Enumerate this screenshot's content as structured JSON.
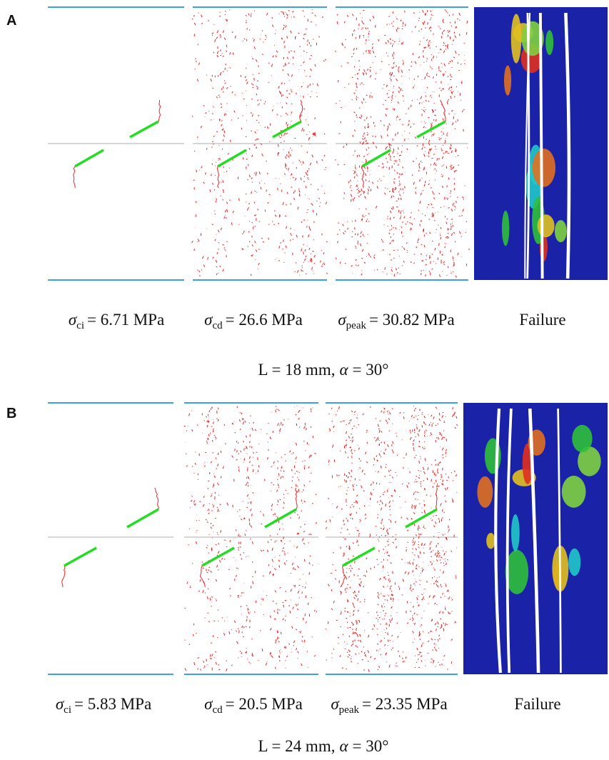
{
  "panels": [
    {
      "letter": "A",
      "labels": [
        {
          "symbol": "σ",
          "subscript": "ci",
          "text": "= 6.71 MPa"
        },
        {
          "symbol": "σ",
          "subscript": "cd",
          "text": "= 26.6 MPa"
        },
        {
          "symbol": "σ",
          "subscript": "peak",
          "text": "= 30.82 MPa"
        },
        {
          "text": "Failure"
        }
      ],
      "caption": {
        "prefix": "L = 18 mm,",
        "symbol": "α",
        "suffix": "= 30°"
      }
    },
    {
      "letter": "B",
      "labels": [
        {
          "symbol": "σ",
          "subscript": "ci",
          "text": "= 5.83 MPa"
        },
        {
          "symbol": "σ",
          "subscript": "cd",
          "text": "= 20.5 MPa"
        },
        {
          "symbol": "σ",
          "subscript": "peak",
          "text": "= 23.35 MPa"
        },
        {
          "text": "Failure"
        }
      ],
      "caption": {
        "prefix": "L = 24 mm,",
        "symbol": "α",
        "suffix": "= 30°"
      }
    }
  ]
}
